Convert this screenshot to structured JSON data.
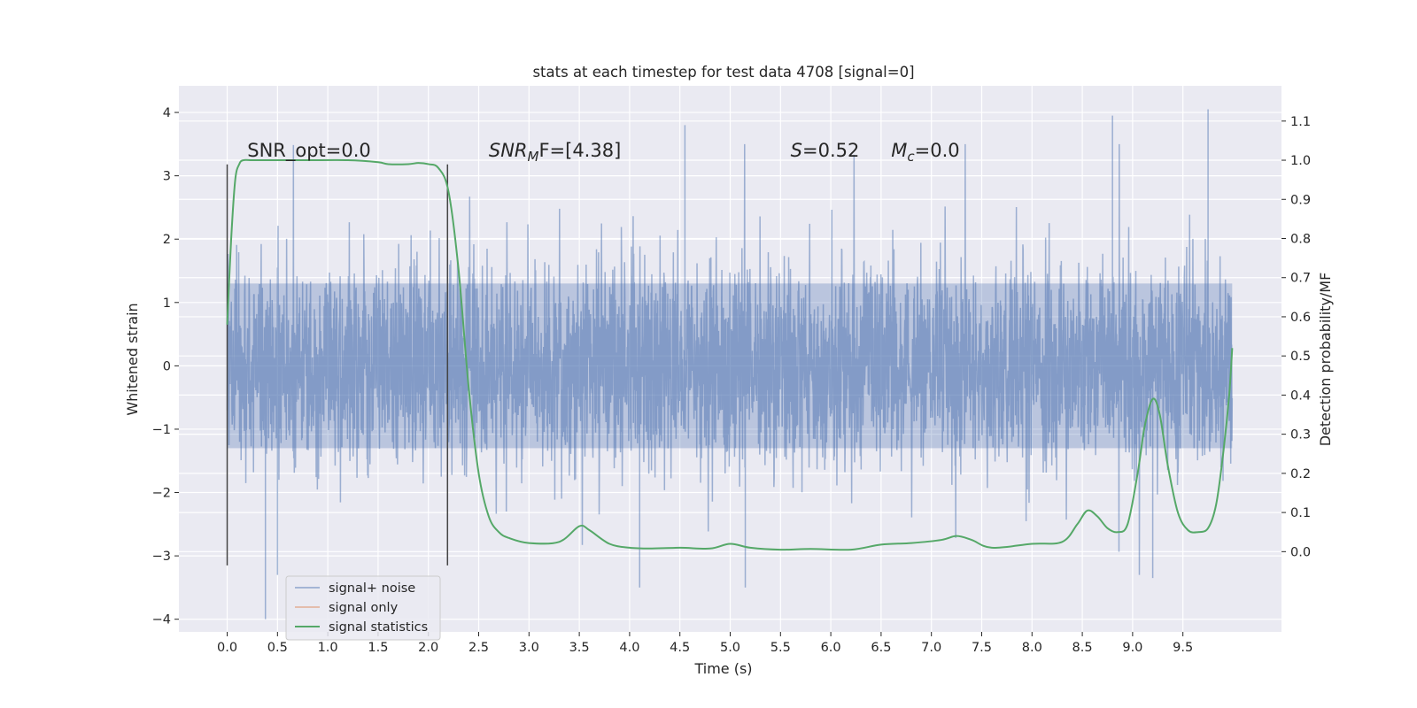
{
  "chart_data": {
    "type": "line",
    "title": "stats at each timestep for test data 4708 [signal=0]",
    "xlabel": "Time (s)",
    "ylabel_left": "Whitened strain",
    "ylabel_right": "Detection probability/MF",
    "xlim": [
      -0.48,
      10.48
    ],
    "ylim_left": [
      -4.2,
      4.42
    ],
    "ylim_right": [
      -0.205,
      1.19
    ],
    "x_ticks": [
      0.0,
      0.5,
      1.0,
      1.5,
      2.0,
      2.5,
      3.0,
      3.5,
      4.0,
      4.5,
      5.0,
      5.5,
      6.0,
      6.5,
      7.0,
      7.5,
      8.0,
      8.5,
      9.0,
      9.5
    ],
    "x_tick_labels": [
      "0.0",
      "0.5",
      "1.0",
      "1.5",
      "2.0",
      "2.5",
      "3.0",
      "3.5",
      "4.0",
      "4.5",
      "5.0",
      "5.5",
      "6.0",
      "6.5",
      "7.0",
      "7.5",
      "8.0",
      "8.5",
      "9.0",
      "9.5"
    ],
    "y_left_ticks": [
      4,
      3,
      2,
      1,
      0,
      -1,
      -2,
      -3,
      -4
    ],
    "y_left_tick_labels": [
      "4",
      "3",
      "2",
      "1",
      "0",
      "−1",
      "−2",
      "−3",
      "−4"
    ],
    "y_right_ticks": [
      1.1,
      1.0,
      0.9,
      0.8,
      0.7,
      0.6,
      0.5,
      0.4,
      0.3,
      0.2,
      0.1,
      0.0
    ],
    "y_right_tick_labels": [
      "1.1",
      "1.0",
      "0.9",
      "0.8",
      "0.7",
      "0.6",
      "0.5",
      "0.4",
      "0.3",
      "0.2",
      "0.1",
      "0.0"
    ],
    "grid": true,
    "legend_position": "lower-left",
    "series": [
      {
        "name": "signal+ noise",
        "color": "#4c72b0",
        "axis": "left",
        "style": "dense noise",
        "x_range": [
          0.0,
          9.99
        ],
        "envelope_typical": [
          -1.3,
          1.3
        ],
        "extremes": [
          {
            "x": 0.38,
            "y": -4.0
          },
          {
            "x": 0.5,
            "y": -3.3
          },
          {
            "x": 4.1,
            "y": -3.5
          },
          {
            "x": 5.15,
            "y": -3.5
          },
          {
            "x": 9.2,
            "y": -3.35
          },
          {
            "x": 4.55,
            "y": 3.8
          },
          {
            "x": 8.8,
            "y": 3.95
          },
          {
            "x": 9.75,
            "y": 4.05
          }
        ]
      },
      {
        "name": "signal only",
        "color": "#dd8452",
        "axis": "left",
        "x": [],
        "y": []
      },
      {
        "name": "signal statistics",
        "color": "#55a868",
        "axis": "right",
        "x": [
          0.0,
          0.04,
          0.08,
          0.12,
          0.16,
          0.25,
          0.4,
          0.8,
          1.2,
          1.5,
          1.6,
          1.8,
          1.9,
          2.0,
          2.1,
          2.2,
          2.3,
          2.4,
          2.5,
          2.6,
          2.7,
          2.8,
          3.0,
          3.3,
          3.5,
          3.6,
          3.8,
          4.0,
          4.2,
          4.5,
          4.8,
          5.0,
          5.2,
          5.5,
          5.8,
          6.2,
          6.5,
          6.8,
          7.1,
          7.25,
          7.4,
          7.6,
          8.0,
          8.3,
          8.45,
          8.55,
          8.65,
          8.75,
          8.85,
          8.95,
          9.05,
          9.12,
          9.2,
          9.27,
          9.35,
          9.45,
          9.55,
          9.65,
          9.75,
          9.83,
          9.9,
          9.96,
          9.99
        ],
        "y": [
          0.58,
          0.8,
          0.95,
          0.99,
          1.0,
          1.0,
          1.0,
          1.0,
          1.0,
          0.995,
          0.99,
          0.99,
          0.993,
          0.99,
          0.98,
          0.92,
          0.72,
          0.42,
          0.2,
          0.09,
          0.05,
          0.035,
          0.022,
          0.025,
          0.065,
          0.055,
          0.02,
          0.01,
          0.008,
          0.01,
          0.008,
          0.02,
          0.01,
          0.005,
          0.007,
          0.005,
          0.018,
          0.022,
          0.03,
          0.04,
          0.03,
          0.01,
          0.02,
          0.025,
          0.07,
          0.105,
          0.09,
          0.06,
          0.05,
          0.07,
          0.2,
          0.32,
          0.39,
          0.35,
          0.22,
          0.1,
          0.055,
          0.05,
          0.06,
          0.12,
          0.25,
          0.4,
          0.52
        ]
      }
    ],
    "vertical_lines": [
      {
        "x": 0.0,
        "ymin": -3.15,
        "ymax": 3.18,
        "color": "#444444"
      },
      {
        "x": 2.19,
        "ymin": -3.15,
        "ymax": 3.18,
        "color": "#444444"
      }
    ],
    "annotations": [
      {
        "id": "snr-opt",
        "text": "SNR_opt=0.0",
        "x": 0.2,
        "y": 3.3
      },
      {
        "id": "snr-mf",
        "prefix": "SNR",
        "sub": "M",
        "suffix": "F=[4.38]",
        "x": 2.6,
        "y": 3.3
      },
      {
        "id": "s-stat",
        "prefix": "S",
        "suffix": "=0.52",
        "x": 5.6,
        "y": 3.3
      },
      {
        "id": "mc",
        "prefix": "M",
        "sub": "c",
        "suffix": "=0.0",
        "x": 6.6,
        "y": 3.3
      }
    ]
  },
  "colors": {
    "axes_bg": "#eaeaf2",
    "grid": "#ffffff",
    "text": "#262626"
  }
}
